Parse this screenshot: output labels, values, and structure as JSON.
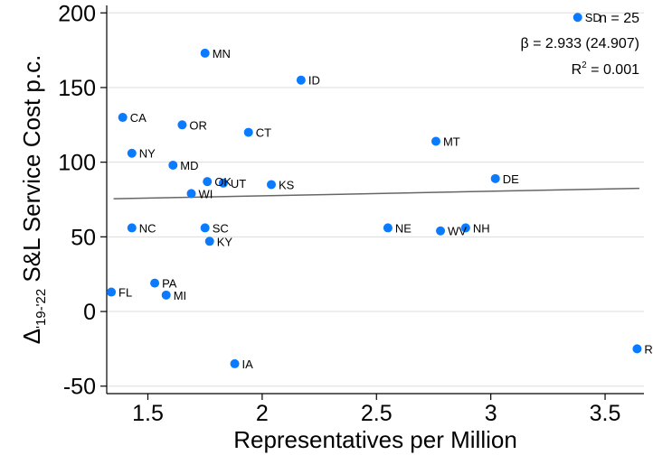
{
  "chart_data": {
    "type": "scatter",
    "xlabel": "Representatives per Million",
    "ylabel_prefix": "Δ",
    "ylabel_sub": "'19-'22",
    "ylabel_main": " S&L Service Cost p.c.",
    "xlim": [
      1.32,
      3.67
    ],
    "ylim": [
      -55,
      205
    ],
    "xticks": [
      {
        "value": 1.5,
        "label": "1.5"
      },
      {
        "value": 2,
        "label": "2"
      },
      {
        "value": 2.5,
        "label": "2.5"
      },
      {
        "value": 3,
        "label": "3"
      },
      {
        "value": 3.5,
        "label": "3.5"
      }
    ],
    "yticks": [
      {
        "value": -50,
        "label": "-50"
      },
      {
        "value": 0,
        "label": "0"
      },
      {
        "value": 50,
        "label": "50"
      },
      {
        "value": 100,
        "label": "100"
      },
      {
        "value": 150,
        "label": "150"
      },
      {
        "value": 200,
        "label": "200"
      }
    ],
    "grid": "horizontal",
    "point_color": "#0a7bff",
    "fit_color": "#666666",
    "fit_line": {
      "x": [
        1.35,
        3.65
      ],
      "y": [
        75.5,
        82.5
      ]
    },
    "points": [
      {
        "label": "SD",
        "x": 3.38,
        "y": 197
      },
      {
        "label": "MN",
        "x": 1.75,
        "y": 173
      },
      {
        "label": "ID",
        "x": 2.17,
        "y": 155
      },
      {
        "label": "CA",
        "x": 1.39,
        "y": 130
      },
      {
        "label": "OR",
        "x": 1.65,
        "y": 125
      },
      {
        "label": "CT",
        "x": 1.94,
        "y": 120
      },
      {
        "label": "MT",
        "x": 2.76,
        "y": 114
      },
      {
        "label": "NY",
        "x": 1.43,
        "y": 106
      },
      {
        "label": "MD",
        "x": 1.61,
        "y": 98
      },
      {
        "label": "DE",
        "x": 3.02,
        "y": 89
      },
      {
        "label": "OK",
        "x": 1.76,
        "y": 87
      },
      {
        "label": "UT",
        "x": 1.83,
        "y": 86
      },
      {
        "label": "KS",
        "x": 2.04,
        "y": 85
      },
      {
        "label": "WI",
        "x": 1.69,
        "y": 79
      },
      {
        "label": "NC",
        "x": 1.43,
        "y": 56
      },
      {
        "label": "SC",
        "x": 1.75,
        "y": 56
      },
      {
        "label": "NE",
        "x": 2.55,
        "y": 56
      },
      {
        "label": "NH",
        "x": 2.89,
        "y": 56
      },
      {
        "label": "WV",
        "x": 2.78,
        "y": 54
      },
      {
        "label": "KY",
        "x": 1.77,
        "y": 47
      },
      {
        "label": "PA",
        "x": 1.53,
        "y": 19
      },
      {
        "label": "FL",
        "x": 1.34,
        "y": 13
      },
      {
        "label": "MI",
        "x": 1.58,
        "y": 11
      },
      {
        "label": "RI",
        "x": 3.64,
        "y": -25
      },
      {
        "label": "IA",
        "x": 1.88,
        "y": -35
      }
    ],
    "annotations": {
      "n": "n = 25",
      "beta": "β = 2.933 (24.907)",
      "r2_prefix": "R",
      "r2_exp": "2",
      "r2_value": " = 0.001"
    }
  }
}
